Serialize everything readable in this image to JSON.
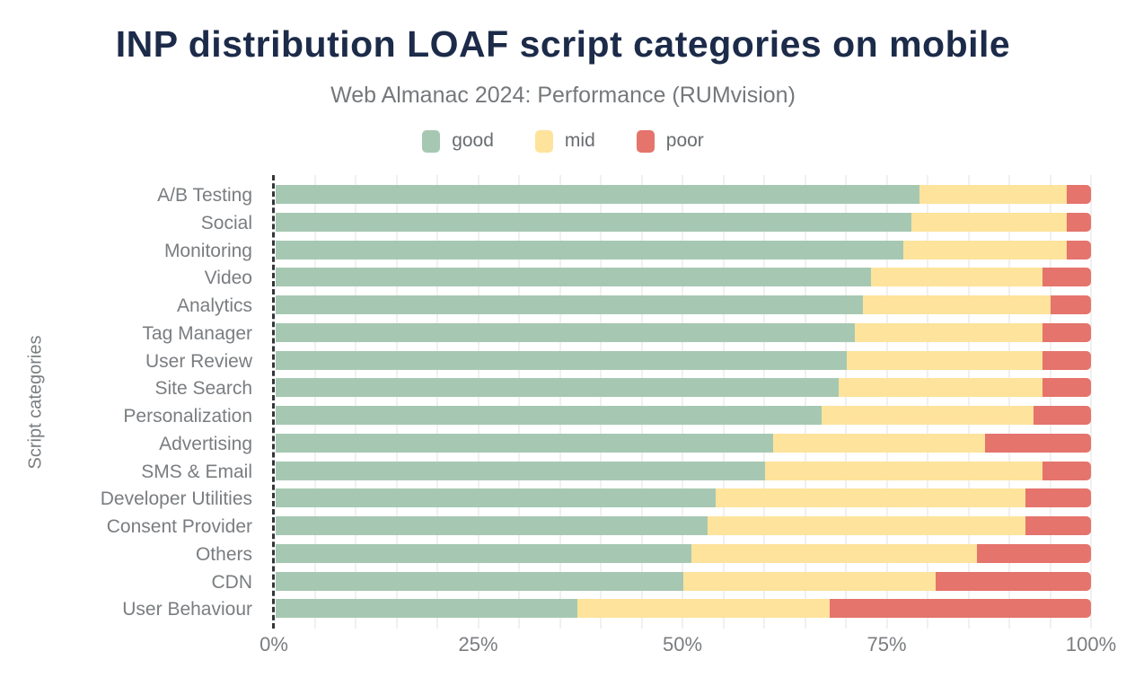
{
  "title": "INP distribution LOAF script categories on mobile",
  "subtitle": "Web Almanac 2024: Performance (RUMvision)",
  "colors": {
    "title": "#1c2b49",
    "subtitle_text": "#75787b",
    "axis_text": "#7a7d80",
    "gridline": "#f0f0f0",
    "axis_line": "#333639",
    "good": "#a6c8b2",
    "mid": "#fde39b",
    "poor": "#e4746c"
  },
  "legend": [
    {
      "label": "good",
      "color": "#a6c8b2"
    },
    {
      "label": "mid",
      "color": "#fde39b"
    },
    {
      "label": "poor",
      "color": "#e4746c"
    }
  ],
  "chart_data": {
    "type": "bar",
    "orientation": "horizontal",
    "stacked": true,
    "title": "INP distribution LOAF script categories on mobile",
    "subtitle": "Web Almanac 2024: Performance (RUMvision)",
    "ylabel": "Script categories",
    "xlabel": "",
    "xlim": [
      0,
      100
    ],
    "x_tick_labels": [
      "0%",
      "25%",
      "50%",
      "75%",
      "100%"
    ],
    "x_tick_values": [
      0,
      25,
      50,
      75,
      100
    ],
    "grid_step_pct": 5,
    "legend_position": "top",
    "categories": [
      "A/B Testing",
      "Social",
      "Monitoring",
      "Video",
      "Analytics",
      "Tag Manager",
      "User Review",
      "Site Search",
      "Personalization",
      "Advertising",
      "SMS & Email",
      "Developer Utilities",
      "Consent Provider",
      "Others",
      "CDN",
      "User Behaviour"
    ],
    "series": [
      {
        "name": "good",
        "color": "#a6c8b2",
        "values": [
          79,
          78,
          77,
          73,
          72,
          71,
          70,
          69,
          67,
          61,
          60,
          54,
          53,
          51,
          50,
          37
        ]
      },
      {
        "name": "mid",
        "color": "#fde39b",
        "values": [
          18,
          19,
          20,
          21,
          23,
          23,
          24,
          25,
          26,
          26,
          34,
          38,
          39,
          35,
          31,
          31
        ]
      },
      {
        "name": "poor",
        "color": "#e4746c",
        "values": [
          3,
          3,
          3,
          6,
          5,
          6,
          6,
          6,
          7,
          13,
          6,
          8,
          8,
          14,
          19,
          32
        ]
      }
    ]
  }
}
